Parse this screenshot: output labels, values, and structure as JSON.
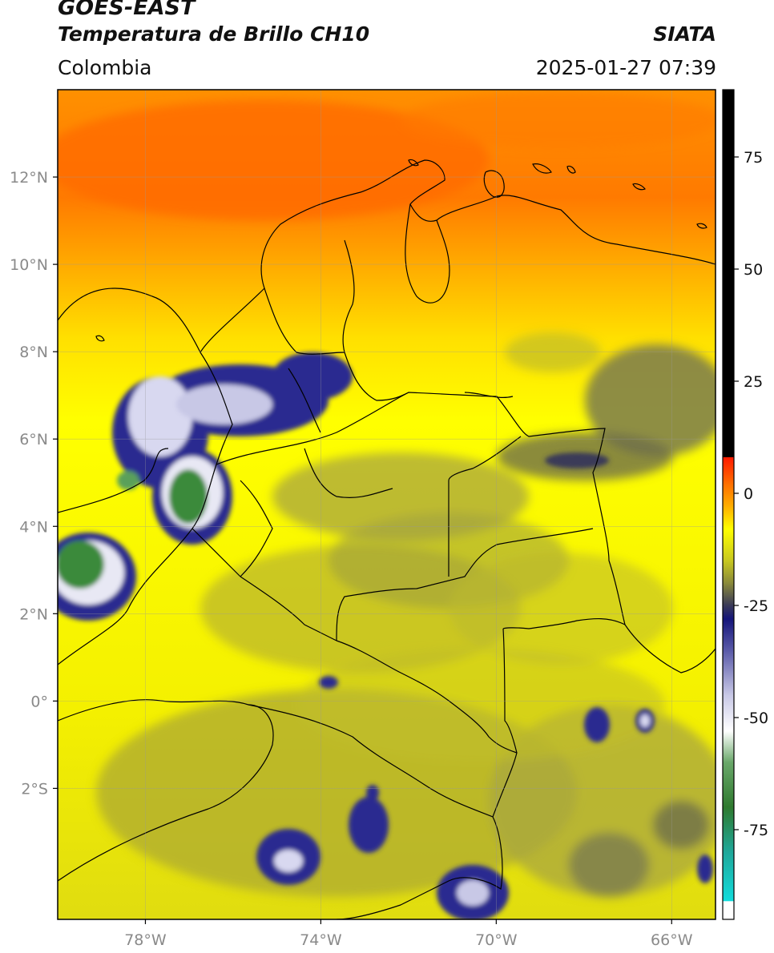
{
  "header": {
    "title_line1": "GOES-EAST",
    "title_line2": "Temperatura de Brillo CH10",
    "source": "SIATA",
    "region": "Colombia",
    "timestamp": "2025-01-27 07:39"
  },
  "map": {
    "lon_range": [
      -80,
      -65
    ],
    "lat_range": [
      -5,
      14
    ],
    "lon_ticks": [
      {
        "value": -78,
        "label": "78°W"
      },
      {
        "value": -74,
        "label": "74°W"
      },
      {
        "value": -70,
        "label": "70°W"
      },
      {
        "value": -66,
        "label": "66°W"
      }
    ],
    "lat_ticks": [
      {
        "value": 12,
        "label": "12°N"
      },
      {
        "value": 10,
        "label": "10°N"
      },
      {
        "value": 8,
        "label": "8°N"
      },
      {
        "value": 6,
        "label": "6°N"
      },
      {
        "value": 4,
        "label": "4°N"
      },
      {
        "value": 2,
        "label": "2°N"
      },
      {
        "value": 0,
        "label": "0°"
      },
      {
        "value": -2,
        "label": "2°S"
      }
    ],
    "grid": true
  },
  "colorbar": {
    "range": [
      -95,
      90
    ],
    "ticks": [
      {
        "value": 75,
        "label": "75"
      },
      {
        "value": 50,
        "label": "50"
      },
      {
        "value": 25,
        "label": "25"
      },
      {
        "value": 0,
        "label": "0"
      },
      {
        "value": -25,
        "label": "-25"
      },
      {
        "value": -50,
        "label": "-50"
      },
      {
        "value": -75,
        "label": "-75"
      }
    ],
    "stops": [
      {
        "value": -95,
        "color": "#ffffff"
      },
      {
        "value": -91,
        "color": "#ffffff"
      },
      {
        "value": -90.9,
        "color": "#12dcdc"
      },
      {
        "value": -80,
        "color": "#1fa89a"
      },
      {
        "value": -70,
        "color": "#2f7a2f"
      },
      {
        "value": -60,
        "color": "#6aa86a"
      },
      {
        "value": -53,
        "color": "#ffffff"
      },
      {
        "value": -45,
        "color": "#c8c8e6"
      },
      {
        "value": -35,
        "color": "#5a5aa8"
      },
      {
        "value": -28,
        "color": "#15157a"
      },
      {
        "value": -25,
        "color": "#3a3a58"
      },
      {
        "value": -20,
        "color": "#8a8a3a"
      },
      {
        "value": -15,
        "color": "#c8c820"
      },
      {
        "value": -8,
        "color": "#ffff00"
      },
      {
        "value": -3,
        "color": "#ffb000"
      },
      {
        "value": 2,
        "color": "#ff7000"
      },
      {
        "value": 8,
        "color": "#ff1a00"
      },
      {
        "value": 8.1,
        "color": "#000000"
      },
      {
        "value": 90,
        "color": "#000000"
      }
    ]
  }
}
